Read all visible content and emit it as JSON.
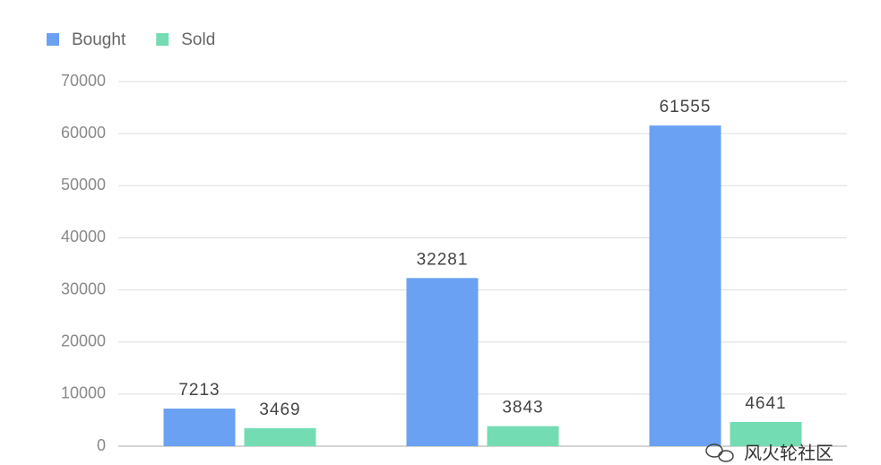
{
  "chart_data": {
    "type": "bar",
    "categories": [
      null,
      null,
      null
    ],
    "series": [
      {
        "name": "Bought",
        "color": "#6aa1f3",
        "values": [
          7213,
          32281,
          61555
        ]
      },
      {
        "name": "Sold",
        "color": "#74dcb2",
        "values": [
          3469,
          3843,
          4641
        ]
      }
    ],
    "ylim": [
      0,
      70000
    ],
    "yticks": [
      0,
      10000,
      20000,
      30000,
      40000,
      50000,
      60000,
      70000
    ],
    "grid": true,
    "legend": "top-left"
  },
  "watermark": "风火轮社区"
}
